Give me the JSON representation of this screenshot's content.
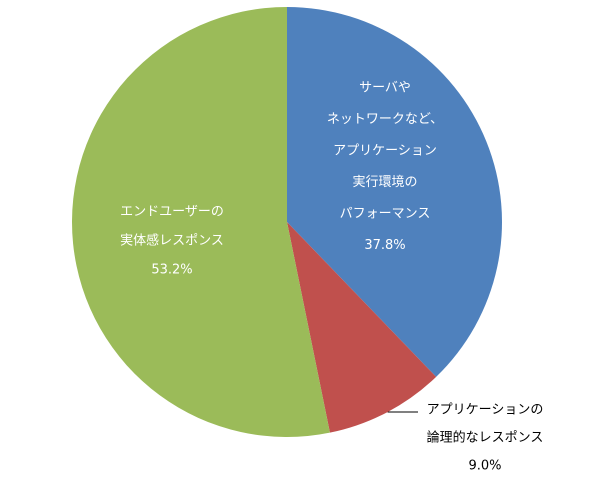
{
  "chart_data": {
    "type": "pie",
    "categories": [
      [
        "サーバや",
        "ネットワークなど、",
        "アプリケーション",
        "実行環境の",
        "パフォーマンス"
      ],
      [
        "アプリケーションの",
        "論理的なレスポンス"
      ],
      [
        "エンドユーザーの",
        "実体感レスポンス"
      ]
    ],
    "values": [
      37.8,
      9.0,
      53.2
    ],
    "value_labels": [
      "37.8%",
      "9.0%",
      "53.2%"
    ],
    "colors": [
      "#4f81bd",
      "#c0504d",
      "#9bbb59"
    ]
  }
}
